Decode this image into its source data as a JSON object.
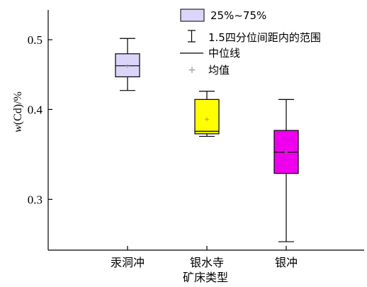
{
  "chart_data": {
    "type": "box",
    "title": "",
    "xlabel": "矿床类型",
    "ylabel_italic": "w",
    "ylabel_rest": "(Cd)/%",
    "y_scale": "log",
    "ylim": [
      0.255,
      0.55
    ],
    "yticks": [
      {
        "value": 0.3,
        "label": "0.3"
      },
      {
        "value": 0.4,
        "label": "0.4"
      },
      {
        "value": 0.5,
        "label": "0.5"
      }
    ],
    "categories": [
      "汞洞冲",
      "银水寺",
      "银冲"
    ],
    "boxes": [
      {
        "category": "汞洞冲",
        "whisker_low": 0.425,
        "q1": 0.444,
        "median": 0.46,
        "q3": 0.478,
        "whisker_high": 0.502,
        "mean": 0.46,
        "color": "#dcd5fa"
      },
      {
        "category": "银水寺",
        "whisker_low": 0.367,
        "q1": 0.37,
        "median": 0.373,
        "q3": 0.413,
        "whisker_high": 0.424,
        "mean": 0.388,
        "color": "#ffff00"
      },
      {
        "category": "银冲",
        "whisker_low": 0.262,
        "q1": 0.326,
        "median": 0.349,
        "q3": 0.374,
        "whisker_high": 0.413,
        "mean": 0.349,
        "color": "#ee00ee"
      }
    ],
    "legend": {
      "placement": "top-right",
      "box_label": "25%~75%",
      "whisker_label": "1.5四分位间距内的范围",
      "median_label": "中位线",
      "mean_label": "均值",
      "mean_symbol": "+"
    }
  }
}
